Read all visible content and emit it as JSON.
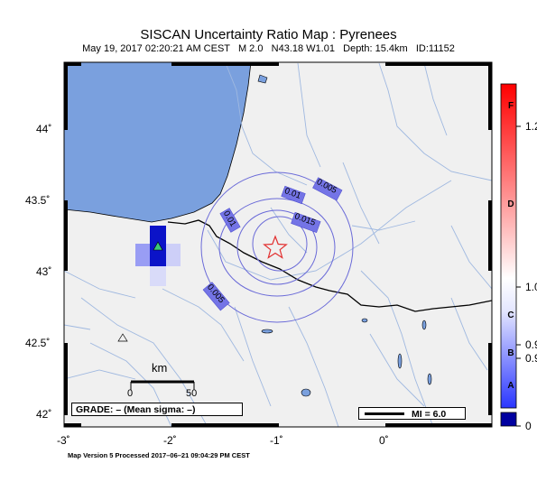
{
  "header": {
    "title": "SISCAN Uncertainty Ratio Map : Pyrenees",
    "subtitle": "May 19, 2017 02:20:21 AM CEST   M 2.0   N43.18 W1.01   Depth: 15.4km   ID:11152"
  },
  "axes": {
    "lat_labels": [
      "44˚",
      "43.5˚",
      "43˚",
      "42.5˚",
      "42˚"
    ],
    "lon_labels": [
      "-3˚",
      "-2˚",
      "-1˚",
      "0˚"
    ]
  },
  "contours": {
    "labels": [
      "0.005",
      "0.01",
      "0.015",
      "0.01",
      "0.005"
    ]
  },
  "scale_bar": {
    "unit": "km",
    "ticks": [
      "0",
      "50"
    ]
  },
  "grade": {
    "text": "GRADE: – (Mean sigma: –)"
  },
  "mi": {
    "text": "MI = 6.0"
  },
  "footer": {
    "text": "Map Version 5 Processed 2017–06–21 09:04:29 PM CEST"
  },
  "colorscale": {
    "letters": [
      "F",
      "D",
      "C",
      "B",
      "A"
    ],
    "values": [
      "1.2",
      "1.0",
      "0.9",
      "0.9",
      "0"
    ],
    "colors": {
      "top": "#ff0000",
      "mid": "#ffffff",
      "bottom": "#1a2cff",
      "nodata": "#0000a0"
    }
  },
  "colors": {
    "sea": "#7aa0de",
    "land": "#f0f0f0",
    "rivers": "#9fb8e0",
    "contour": "#6a6ad8",
    "epicenter": "#e23030",
    "station": "#3cc878"
  }
}
